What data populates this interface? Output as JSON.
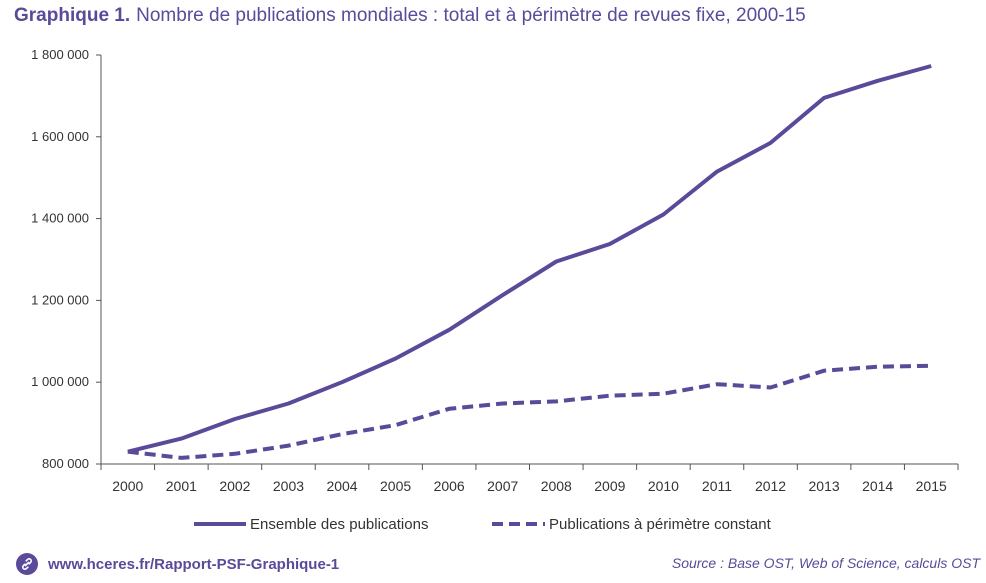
{
  "title": {
    "label": "Graphique 1.",
    "text": "Nombre de publications mondiales : total et à périmètre de revues fixe, 2000-15"
  },
  "chart_data": {
    "type": "line",
    "x": [
      "2000",
      "2001",
      "2002",
      "2003",
      "2004",
      "2005",
      "2006",
      "2007",
      "2008",
      "2009",
      "2010",
      "2011",
      "2012",
      "2013",
      "2014",
      "2015"
    ],
    "ylim": [
      800000,
      1800000
    ],
    "yticks": [
      800000,
      1000000,
      1200000,
      1400000,
      1600000,
      1800000
    ],
    "ytick_labels": [
      "800 000",
      "1 000 000",
      "1 200 000",
      "1 400 000",
      "1 600 000",
      "1 800 000"
    ],
    "grid": false,
    "legend_position": "bottom",
    "series": [
      {
        "name": "Ensemble des publications",
        "style": "solid",
        "values": [
          830000,
          862000,
          910000,
          948000,
          1000000,
          1058000,
          1128000,
          1213000,
          1295000,
          1338000,
          1410000,
          1515000,
          1585000,
          1695000,
          1737000,
          1773000
        ]
      },
      {
        "name": "Publications à périmètre constant",
        "style": "dashed",
        "values": [
          830000,
          815000,
          825000,
          845000,
          873000,
          895000,
          935000,
          948000,
          953000,
          967000,
          972000,
          995000,
          987000,
          1028000,
          1038000,
          1040000
        ]
      }
    ],
    "color": "#5b4a99"
  },
  "footer": {
    "link_text": "www.hceres.fr/Rapport-PSF-Graphique-1",
    "link_icon": "link-icon",
    "source": "Source : Base OST, Web of Science, calculs OST"
  }
}
